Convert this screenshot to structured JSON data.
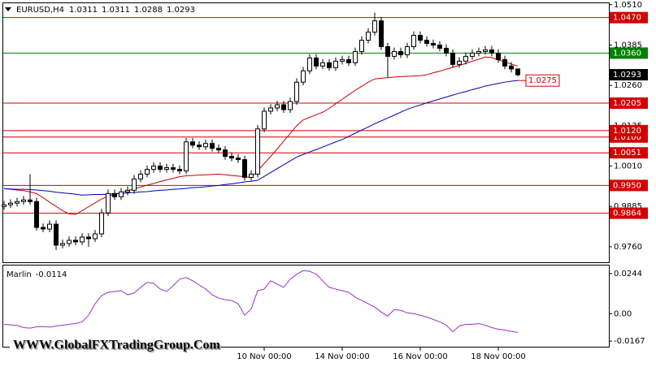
{
  "chart_data": {
    "type": "candlestick",
    "symbol": "EURUSD,H4",
    "up_color": "#ffffff",
    "down_color": "#000000",
    "categories": [
      null,
      null,
      null,
      null,
      null,
      null,
      null,
      null,
      null,
      null,
      null,
      null,
      null,
      null,
      null,
      null,
      null,
      null,
      null,
      null,
      null,
      null,
      null,
      null,
      null,
      null,
      null,
      null,
      null,
      null,
      null,
      null,
      null,
      null,
      null,
      null,
      null,
      null,
      null,
      null,
      "10 Nov 00:00",
      null,
      null,
      null,
      null,
      null,
      null,
      null,
      null,
      null,
      null,
      null,
      "14 Nov 00:00",
      null,
      null,
      null,
      null,
      null,
      null,
      null,
      null,
      null,
      null,
      null,
      "16 Nov 00:00",
      null,
      null,
      null,
      null,
      null,
      null,
      null,
      null,
      null,
      null,
      null,
      "18 Nov 00:00",
      null,
      null,
      null
    ],
    "open": [
      0.9885,
      0.989,
      0.9895,
      0.99,
      0.9905,
      0.99,
      0.982,
      0.9815,
      0.983,
      0.9765,
      0.977,
      0.978,
      0.9775,
      0.979,
      0.9785,
      0.98,
      0.9865,
      0.9925,
      0.9915,
      0.993,
      0.9935,
      0.997,
      0.9985,
      1.0,
      1.001,
      1.0,
      1.0005,
      1.0,
      0.9995,
      1.0085,
      1.0075,
      1.007,
      1.008,
      1.0065,
      1.006,
      1.004,
      1.0035,
      1.003,
      0.9975,
      0.9985,
      1.0125,
      1.018,
      1.019,
      1.02,
      1.0185,
      1.021,
      1.027,
      1.0305,
      1.0345,
      1.032,
      1.033,
      1.0315,
      1.0335,
      1.034,
      1.033,
      1.0365,
      1.04,
      1.0425,
      1.046,
      1.038,
      1.035,
      1.0365,
      1.0355,
      1.038,
      1.0415,
      1.04,
      1.039,
      1.0385,
      1.0375,
      1.036,
      1.0325,
      1.0335,
      1.035,
      1.036,
      1.0365,
      1.037,
      1.036,
      1.034,
      1.032,
      1.0311
    ],
    "high": [
      0.9902,
      0.9907,
      0.9912,
      0.9917,
      0.9985,
      0.9912,
      0.9832,
      0.9842,
      0.9842,
      0.9782,
      0.9792,
      0.9792,
      0.9802,
      0.9802,
      0.9812,
      0.9877,
      0.9937,
      0.9937,
      0.9942,
      0.9947,
      0.9982,
      0.9997,
      1.0012,
      1.0022,
      1.0022,
      1.0017,
      1.0017,
      1.0012,
      1.0097,
      1.0097,
      1.0087,
      1.0092,
      1.0092,
      1.0077,
      1.0072,
      1.0052,
      1.0047,
      1.0042,
      0.9997,
      1.0137,
      1.0192,
      1.0202,
      1.0212,
      1.0212,
      1.0222,
      1.0282,
      1.0317,
      1.0357,
      1.0357,
      1.0342,
      1.0342,
      1.0347,
      1.0352,
      1.0352,
      1.0377,
      1.0412,
      1.0437,
      1.0485,
      1.0472,
      1.0392,
      1.0377,
      1.0377,
      1.0392,
      1.0427,
      1.0427,
      1.0412,
      1.0402,
      1.0397,
      1.0387,
      1.0372,
      1.0347,
      1.0362,
      1.0372,
      1.0377,
      1.0382,
      1.0382,
      1.0372,
      1.0352,
      1.0332,
      1.0311
    ],
    "low": [
      0.9875,
      0.988,
      0.9885,
      0.989,
      0.989,
      0.981,
      0.9805,
      0.9805,
      0.975,
      0.9755,
      0.976,
      0.9765,
      0.9765,
      0.976,
      0.9775,
      0.979,
      0.9855,
      0.9905,
      0.9905,
      0.992,
      0.9925,
      0.996,
      0.9975,
      0.999,
      0.999,
      0.999,
      0.999,
      0.9985,
      0.9985,
      1.0065,
      1.006,
      1.006,
      1.0055,
      1.005,
      1.003,
      1.0025,
      1.002,
      0.9965,
      0.9965,
      0.9975,
      1.0115,
      1.017,
      1.018,
      1.0175,
      1.0175,
      1.02,
      1.026,
      1.0295,
      1.031,
      1.031,
      1.0305,
      1.0305,
      1.0325,
      1.032,
      1.032,
      1.0355,
      1.039,
      1.0415,
      1.037,
      1.0285,
      1.034,
      1.0345,
      1.0345,
      1.037,
      1.039,
      1.038,
      1.0375,
      1.0365,
      1.035,
      1.0315,
      1.0315,
      1.0325,
      1.034,
      1.035,
      1.0355,
      1.035,
      1.033,
      1.031,
      1.03,
      1.0288
    ],
    "close": [
      0.989,
      0.9895,
      0.99,
      0.9905,
      0.99,
      0.982,
      0.9815,
      0.983,
      0.9765,
      0.977,
      0.978,
      0.9775,
      0.979,
      0.9785,
      0.98,
      0.9865,
      0.9925,
      0.9915,
      0.993,
      0.9935,
      0.997,
      0.9985,
      1.0,
      1.001,
      1.0,
      1.0005,
      1.0,
      0.9995,
      1.0085,
      1.0075,
      1.007,
      1.008,
      1.0065,
      1.006,
      1.004,
      1.0035,
      1.003,
      0.9975,
      0.9985,
      1.0125,
      1.018,
      1.019,
      1.02,
      1.0185,
      1.021,
      1.027,
      1.0305,
      1.0345,
      1.032,
      1.033,
      1.0315,
      1.0335,
      1.034,
      1.033,
      1.0365,
      1.04,
      1.0425,
      1.046,
      1.038,
      1.035,
      1.0365,
      1.0355,
      1.038,
      1.0415,
      1.04,
      1.039,
      1.0385,
      1.0375,
      1.036,
      1.0325,
      1.0335,
      1.035,
      1.036,
      1.0365,
      1.037,
      1.036,
      1.034,
      1.032,
      1.0311,
      1.0293
    ],
    "ylim": [
      0.9712,
      1.0517
    ],
    "yticks": [
      {
        "value": 1.051,
        "label": "1.0510"
      },
      1.0385,
      {
        "value": 1.026,
        "label": "1.0260"
      },
      1.0135,
      {
        "value": 1.001,
        "label": "1.0010"
      },
      0.9885,
      {
        "value": 0.976,
        "label": "0.9760"
      }
    ],
    "moving_averages": [
      {
        "color": "#cc0000",
        "values": [
          0.994,
          0.9938,
          0.9936,
          0.9934,
          0.993,
          0.9925,
          0.9912,
          0.9898,
          0.9885,
          0.9872,
          0.9862,
          0.986,
          0.9872,
          0.9884,
          0.9896,
          0.9908,
          0.9917,
          0.9922,
          0.9928,
          0.9934,
          0.9939,
          0.9945,
          0.9951,
          0.9956,
          0.9962,
          0.9967,
          0.9972,
          0.9977,
          0.998,
          0.9981,
          0.9982,
          0.9983,
          0.9984,
          0.9985,
          0.9983,
          0.9981,
          0.9979,
          0.9977,
          0.9975,
          0.9995,
          1.0018,
          1.004,
          1.0063,
          1.0087,
          1.0111,
          1.0135,
          1.0153,
          1.0161,
          1.0169,
          1.0177,
          1.0189,
          1.0203,
          1.0217,
          1.0231,
          1.0245,
          1.0257,
          1.027,
          1.028,
          1.0282,
          1.0284,
          1.0286,
          1.0287,
          1.0288,
          1.0289,
          1.029,
          1.0293,
          1.0299,
          1.0304,
          1.031,
          1.0316,
          1.0322,
          1.0328,
          1.0335,
          1.0341,
          1.0348,
          1.0346,
          1.0339,
          1.0333,
          1.0326,
          1.032
        ]
      },
      {
        "color": "#0000b0",
        "values": [
          0.994,
          0.9939,
          0.9938,
          0.9938,
          0.9937,
          0.9936,
          0.9934,
          0.9932,
          0.9929,
          0.9927,
          0.9925,
          0.9923,
          0.992,
          0.9921,
          0.9922,
          0.9922,
          0.9923,
          0.9924,
          0.9925,
          0.9927,
          0.9928,
          0.993,
          0.9931,
          0.9933,
          0.9935,
          0.9936,
          0.9938,
          0.9939,
          0.9941,
          0.9943,
          0.9944,
          0.9946,
          0.9948,
          0.995,
          0.9953,
          0.9955,
          0.9958,
          0.9961,
          0.9963,
          0.9966,
          0.9978,
          0.999,
          1.0002,
          1.0014,
          1.0026,
          1.0038,
          1.0046,
          1.0054,
          1.0061,
          1.0069,
          1.0077,
          1.0085,
          1.0092,
          1.0102,
          1.0112,
          1.0122,
          1.0131,
          1.0141,
          1.015,
          1.0159,
          1.0168,
          1.0177,
          1.0186,
          1.0193,
          1.0199,
          1.0206,
          1.0212,
          1.0218,
          1.0224,
          1.023,
          1.0236,
          1.0241,
          1.0247,
          1.0252,
          1.0258,
          1.0262,
          1.0266,
          1.027,
          1.0273,
          1.0275
        ]
      }
    ],
    "levels": [
      {
        "value": 1.047,
        "label": "1.0470",
        "color": "#d40000"
      },
      {
        "value": 1.036,
        "label": "1.0360",
        "color": "#008000"
      },
      {
        "value": 1.0205,
        "label": "1.0205",
        "color": "#d40000"
      },
      {
        "value": 1.01,
        "label": "1.0100",
        "color": "#d40000"
      },
      {
        "value": 1.012,
        "label": "1.0120",
        "color": "#d40000"
      },
      {
        "value": 1.0051,
        "label": "1.0051",
        "color": "#d40000"
      },
      {
        "value": 0.995,
        "label": "0.9950",
        "color": "#d40000"
      },
      {
        "value": 0.9864,
        "label": "0.9864",
        "color": "#d40000"
      }
    ],
    "annotation": {
      "value": 1.0275,
      "color": "#d40000"
    },
    "indicator": {
      "name": "Marlin",
      "color": "#9b30d0",
      "ylim": [
        -0.0206,
        0.0293
      ],
      "yticks": [
        0.0244,
        {
          "value": 0,
          "label": "0.00"
        },
        -0.0167
      ],
      "values": [
        -0.0065,
        -0.0068,
        -0.0072,
        -0.0085,
        -0.0088,
        -0.008,
        -0.0078,
        -0.0082,
        -0.0075,
        -0.007,
        -0.0065,
        -0.006,
        -0.005,
        -0.001,
        0.006,
        0.011,
        0.013,
        0.0135,
        0.014,
        0.0115,
        0.0125,
        0.016,
        0.019,
        0.0185,
        0.015,
        0.0135,
        0.017,
        0.021,
        0.022,
        0.02,
        0.0175,
        0.015,
        0.0115,
        0.0095,
        0.0085,
        0.008,
        0.006,
        -0.001,
        0.003,
        0.014,
        0.015,
        0.02,
        0.018,
        0.016,
        0.021,
        0.024,
        0.0262,
        0.0258,
        0.024,
        0.02,
        0.016,
        0.015,
        0.014,
        0.013,
        0.01,
        0.008,
        0.006,
        0.004,
        0.001,
        -0.0015,
        0.0025,
        0.002,
        0.0005,
        0.0,
        -0.001,
        -0.002,
        -0.0035,
        -0.005,
        -0.007,
        -0.011,
        -0.0075,
        -0.0065,
        -0.0065,
        -0.006,
        -0.007,
        -0.0085,
        -0.0095,
        -0.01,
        -0.0108,
        -0.0114
      ]
    },
    "watermark": "WWW.GlobalFXTradingGroup.Com"
  }
}
